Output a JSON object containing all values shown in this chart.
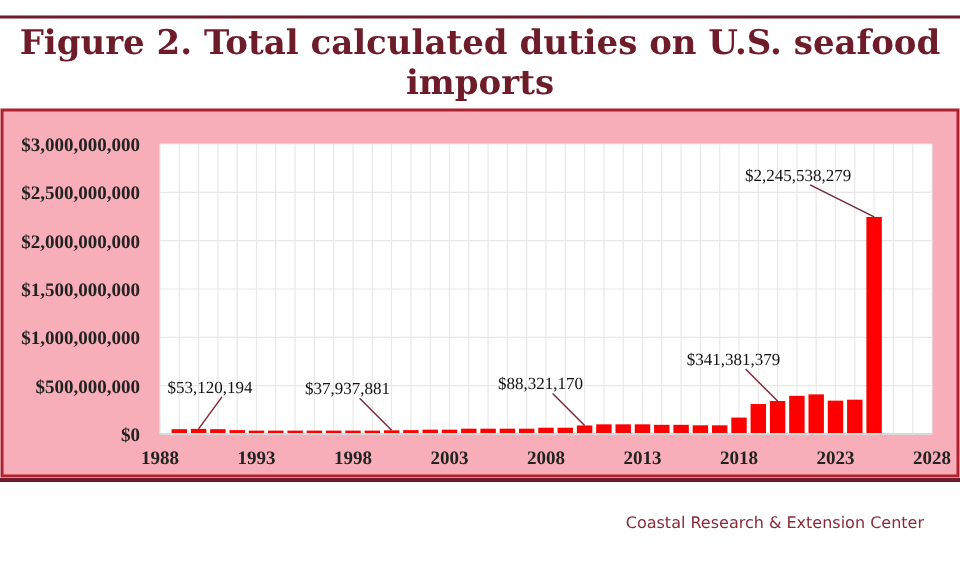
{
  "chart_data": {
    "type": "bar",
    "title": "Figure 2. Total calculated duties on U.S. seafood imports",
    "x": [
      1989,
      1990,
      1991,
      1992,
      1993,
      1994,
      1995,
      1996,
      1997,
      1998,
      1999,
      2000,
      2001,
      2002,
      2003,
      2004,
      2005,
      2006,
      2007,
      2008,
      2009,
      2010,
      2011,
      2012,
      2013,
      2014,
      2015,
      2016,
      2017,
      2018,
      2019,
      2020,
      2021,
      2022,
      2023,
      2024,
      2025
    ],
    "values": [
      50000000,
      53120194,
      50000000,
      40000000,
      35000000,
      35000000,
      35000000,
      35000000,
      35000000,
      35000000,
      35000000,
      37937881,
      40000000,
      45000000,
      45000000,
      55000000,
      55000000,
      55000000,
      55000000,
      65000000,
      65000000,
      88321170,
      100000000,
      100000000,
      100000000,
      95000000,
      95000000,
      90000000,
      90000000,
      170000000,
      310000000,
      341381379,
      395000000,
      410000000,
      345000000,
      355000000,
      2245538279
    ],
    "value_labels": [
      null,
      "$53,120,194",
      null,
      null,
      null,
      null,
      null,
      null,
      null,
      null,
      null,
      "$37,937,881",
      null,
      null,
      null,
      null,
      null,
      null,
      null,
      null,
      null,
      "$88,321,170",
      null,
      null,
      null,
      null,
      null,
      null,
      null,
      null,
      null,
      "$341,381,379",
      null,
      null,
      null,
      null,
      "$2,245,538,279"
    ],
    "color": "#ff0000",
    "xlim": [
      1988,
      2028
    ],
    "xticks": [
      1988,
      1993,
      1998,
      2003,
      2008,
      2013,
      2018,
      2023,
      2028
    ],
    "ylim": [
      0,
      3000000000
    ],
    "yticks": [
      {
        "value": 0,
        "label": "$0"
      },
      {
        "value": 500000000,
        "label": "$500,000,000"
      },
      {
        "value": 1000000000,
        "label": "$1,000,000,000"
      },
      {
        "value": 1500000000,
        "label": "$1,500,000,000"
      },
      {
        "value": 2000000000,
        "label": "$2,000,000,000"
      },
      {
        "value": 2500000000,
        "label": "$2,500,000,000"
      },
      {
        "value": 3000000000,
        "label": "$3,000,000,000"
      }
    ],
    "grid": true,
    "annotations": [
      "Coastal Research & Extension Center"
    ]
  }
}
